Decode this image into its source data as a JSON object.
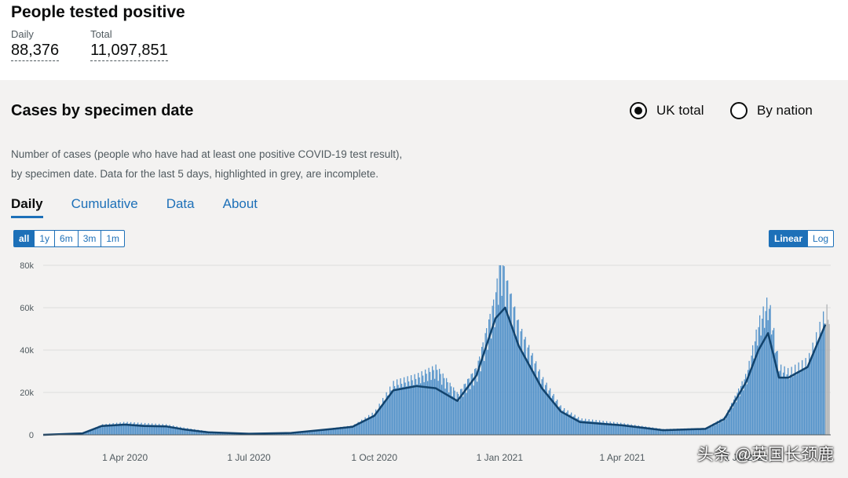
{
  "header": {
    "title": "People tested positive",
    "daily_label": "Daily",
    "daily_value": "88,376",
    "total_label": "Total",
    "total_value": "11,097,851"
  },
  "panel": {
    "title": "Cases by specimen date",
    "radio_uk": "UK total",
    "radio_nation": "By nation",
    "description_line1": "Number of cases (people who have had at least one positive COVID-19 test result),",
    "description_line2": "by specimen date. Data for the last 5 days, highlighted in grey, are incomplete.",
    "tabs": [
      "Daily",
      "Cumulative",
      "Data",
      "About"
    ],
    "ranges": [
      "all",
      "1y",
      "6m",
      "3m",
      "1m"
    ],
    "scales": [
      "Linear",
      "Log"
    ]
  },
  "watermark": "头条 @英国长颈鹿",
  "chart_data": {
    "type": "bar",
    "colors": {
      "bars": "#5694ca",
      "average_line": "#12436d",
      "incomplete": "#b1b4b6",
      "grid": "#dddddd"
    },
    "ylim": [
      0,
      80000
    ],
    "yticks": [
      0,
      20000,
      40000,
      60000,
      80000
    ],
    "ytick_labels": [
      "0",
      "20k",
      "40k",
      "60k",
      "80k"
    ],
    "xticks": [
      "2020-04-01",
      "2020-07-01",
      "2020-10-01",
      "2021-01-01",
      "2021-04-01",
      "2021-07-01"
    ],
    "xtick_labels": [
      "1 Apr 2020",
      "1 Jul 2020",
      "1 Oct 2020",
      "1 Jan 2021",
      "1 Apr 2021",
      "1 Jul 2021"
    ],
    "x_range": [
      "2020-02-01",
      "2021-09-01"
    ],
    "series": [
      {
        "type": "bar",
        "x": [
          "2020-02-01",
          "2020-03-01",
          "2020-03-15",
          "2020-04-01",
          "2020-04-15",
          "2020-05-01",
          "2020-05-15",
          "2020-06-01",
          "2020-07-01",
          "2020-08-01",
          "2020-09-01",
          "2020-09-15",
          "2020-10-01",
          "2020-10-15",
          "2020-11-01",
          "2020-11-15",
          "2020-12-01",
          "2020-12-15",
          "2020-12-29",
          "2021-01-01",
          "2021-01-05",
          "2021-01-15",
          "2021-02-01",
          "2021-02-15",
          "2021-03-01",
          "2021-04-01",
          "2021-05-01",
          "2021-06-01",
          "2021-06-15",
          "2021-07-01",
          "2021-07-10",
          "2021-07-17",
          "2021-07-25",
          "2021-08-01",
          "2021-08-15",
          "2021-08-28"
        ],
        "values": [
          0,
          800,
          4500,
          5500,
          5000,
          4500,
          3000,
          1500,
          600,
          1000,
          3000,
          4000,
          10000,
          23000,
          26000,
          30000,
          18000,
          30000,
          63000,
          81000,
          70000,
          48000,
          25000,
          12000,
          7000,
          5000,
          2500,
          3000,
          8000,
          27000,
          50000,
          60000,
          30000,
          28000,
          33000,
          55000
        ]
      },
      {
        "type": "line",
        "x": [
          "2020-02-01",
          "2020-03-01",
          "2020-03-15",
          "2020-04-01",
          "2020-04-15",
          "2020-05-01",
          "2020-05-15",
          "2020-06-01",
          "2020-07-01",
          "2020-08-01",
          "2020-09-01",
          "2020-09-15",
          "2020-10-01",
          "2020-10-15",
          "2020-11-01",
          "2020-11-15",
          "2020-12-01",
          "2020-12-15",
          "2020-12-29",
          "2021-01-05",
          "2021-01-15",
          "2021-02-01",
          "2021-02-15",
          "2021-03-01",
          "2021-04-01",
          "2021-05-01",
          "2021-06-01",
          "2021-06-15",
          "2021-07-01",
          "2021-07-10",
          "2021-07-17",
          "2021-07-25",
          "2021-08-01",
          "2021-08-15",
          "2021-08-28"
        ],
        "values": [
          0,
          700,
          4200,
          4800,
          4200,
          4000,
          2500,
          1200,
          500,
          900,
          2800,
          3800,
          9000,
          21000,
          23000,
          22000,
          16000,
          28000,
          55000,
          60000,
          42000,
          22000,
          11000,
          6000,
          4500,
          2200,
          2800,
          7500,
          25000,
          40000,
          48000,
          27000,
          27000,
          32000,
          52000
        ]
      }
    ]
  }
}
